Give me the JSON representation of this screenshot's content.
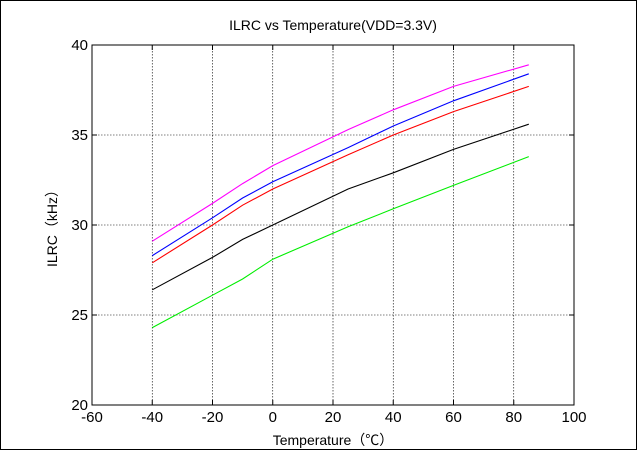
{
  "chart_data": {
    "type": "line",
    "title": "ILRC vs Temperature(VDD=3.3V)",
    "xlabel": "Temperature（℃）",
    "ylabel": "ILRC（kHz）",
    "xlim": [
      -60,
      100
    ],
    "ylim": [
      20,
      40
    ],
    "xticks": [
      -60,
      -40,
      -20,
      0,
      20,
      40,
      60,
      80,
      100
    ],
    "yticks": [
      20,
      25,
      30,
      35,
      40
    ],
    "grid": true,
    "x": [
      -40,
      -20,
      -10,
      0,
      25,
      40,
      60,
      85
    ],
    "series": [
      {
        "color": "#ff00ff",
        "values": [
          29.1,
          31.2,
          32.3,
          33.3,
          35.3,
          36.4,
          37.7,
          38.9
        ]
      },
      {
        "color": "#0000ff",
        "values": [
          28.3,
          30.4,
          31.5,
          32.4,
          34.3,
          35.5,
          36.9,
          38.4
        ]
      },
      {
        "color": "#ff0000",
        "values": [
          27.9,
          30.0,
          31.1,
          32.0,
          33.9,
          35.0,
          36.3,
          37.7
        ]
      },
      {
        "color": "#000000",
        "values": [
          26.4,
          28.2,
          29.2,
          30.0,
          32.0,
          32.9,
          34.2,
          35.6
        ]
      },
      {
        "color": "#00ee00",
        "values": [
          24.3,
          26.1,
          27.0,
          28.1,
          29.9,
          30.9,
          32.2,
          33.8
        ]
      }
    ]
  }
}
